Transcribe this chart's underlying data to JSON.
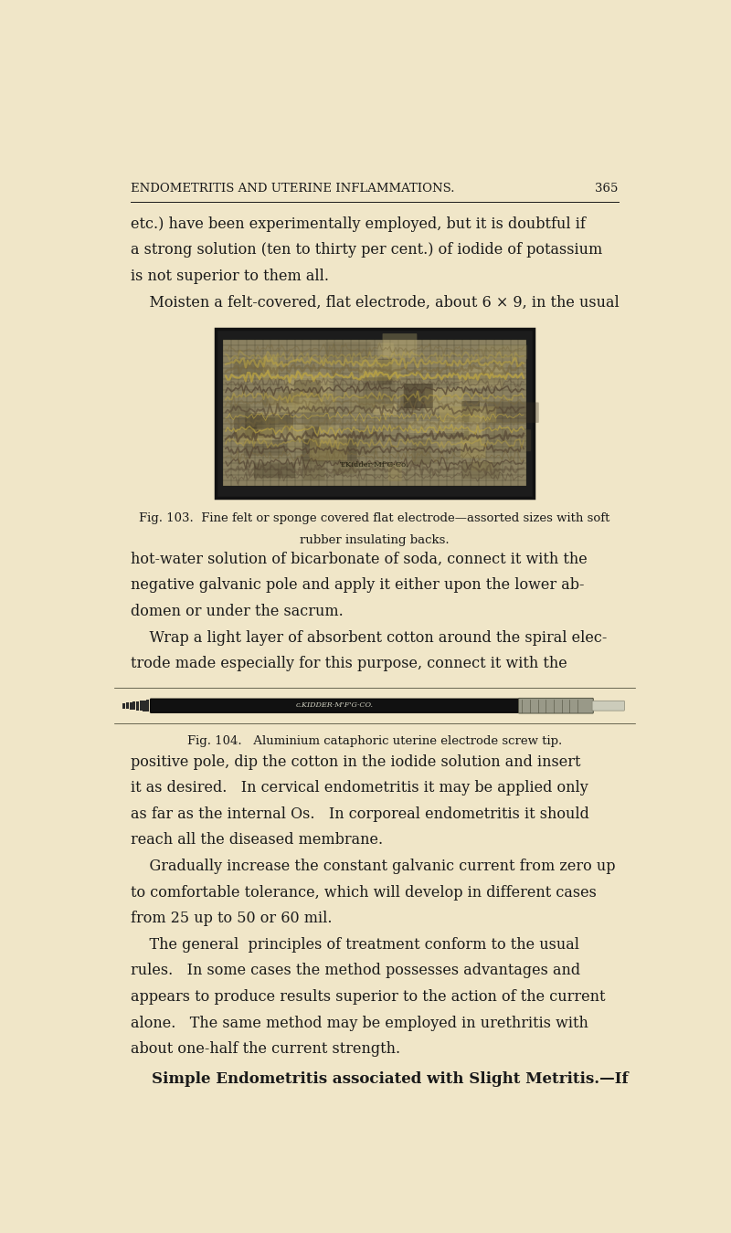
{
  "bg_color": "#f0e6c8",
  "text_color": "#1a1a1a",
  "page_width": 8.0,
  "page_height": 13.5,
  "header_text": "ENDOMETRITIS AND UTERINE INFLAMMATIONS.",
  "page_number": "365",
  "body_lines": [
    "etc.) have been experimentally employed, but it is doubtful if",
    "a strong solution (ten to thirty per cent.) of iodide of potassium",
    "is not superior to them all.",
    "    Moisten a felt-covered, flat electrode, about 6 × 9, in the usual"
  ],
  "fig103_caption_line1": "Fig. 103.  Fine felt or sponge covered flat electrode—assorted sizes with soft",
  "fig103_caption_line2": "rubber insulating backs.",
  "body_lines2": [
    "hot-water solution of bicarbonate of soda, connect it with the",
    "negative galvanic pole and apply it either upon the lower ab-",
    "domen or under the sacrum.",
    "    Wrap a light layer of absorbent cotton around the spiral elec-",
    "trode made especially for this purpose, connect it with the"
  ],
  "fig104_caption": "Fig. 104.   Aluminium cataphoric uterine electrode screw tip.",
  "body_lines3": [
    "positive pole, dip the cotton in the iodide solution and insert",
    "it as desired.   In cervical endometritis it may be applied only",
    "as far as the internal Os.   In corporeal endometritis it should",
    "reach all the diseased membrane.",
    "    Gradually increase the constant galvanic current from zero up",
    "to comfortable tolerance, which will develop in different cases",
    "from 25 up to 50 or 60 mil.",
    "    The general  principles of treatment conform to the usual",
    "rules.   In some cases the method possesses advantages and",
    "appears to produce results superior to the action of the current",
    "alone.   The same method may be employed in urethritis with",
    "about one-half the current strength."
  ],
  "last_line": "    Simple Endometritis associated with Slight Metritis.—If",
  "font_size_body": 11.5,
  "font_size_header": 9.5,
  "font_size_caption": 9.5,
  "font_size_last": 12.0
}
